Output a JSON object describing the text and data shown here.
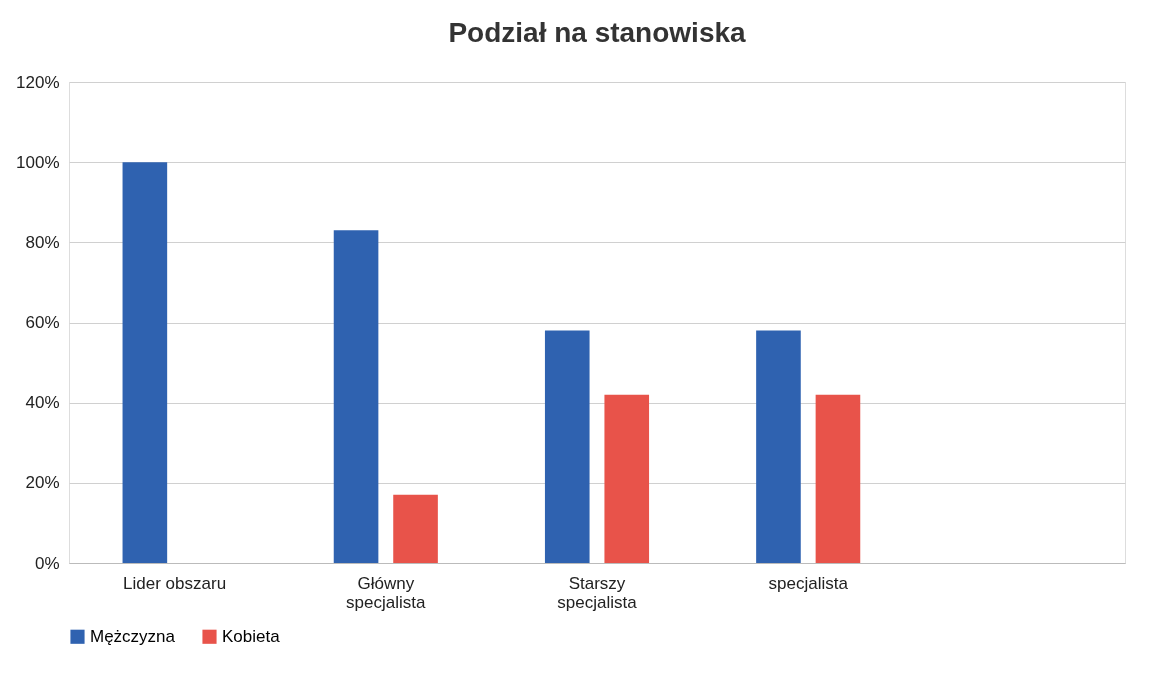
{
  "chart_data": {
    "type": "bar",
    "title": "Podział na stanowiska",
    "categories": [
      "Lider obszaru",
      "Główny specjalista",
      "Starszy specjalista",
      "specjalista",
      null
    ],
    "series": [
      {
        "name": "Mężczyzna",
        "color": "#2f62b0",
        "values": [
          100,
          83,
          58,
          58,
          null
        ]
      },
      {
        "name": "Kobieta",
        "color": "#e8534a",
        "values": [
          null,
          17,
          42,
          42,
          null
        ]
      }
    ],
    "ylim": [
      0,
      120
    ],
    "yticks": [
      {
        "value": 0,
        "label": "0%"
      },
      {
        "value": 20,
        "label": "20%"
      },
      {
        "value": 40,
        "label": "40%"
      },
      {
        "value": 60,
        "label": "60%"
      },
      {
        "value": 80,
        "label": "80%"
      },
      {
        "value": 100,
        "label": "100%"
      },
      {
        "value": 120,
        "label": "120%"
      }
    ],
    "grid": "y",
    "legend": "bottom"
  }
}
